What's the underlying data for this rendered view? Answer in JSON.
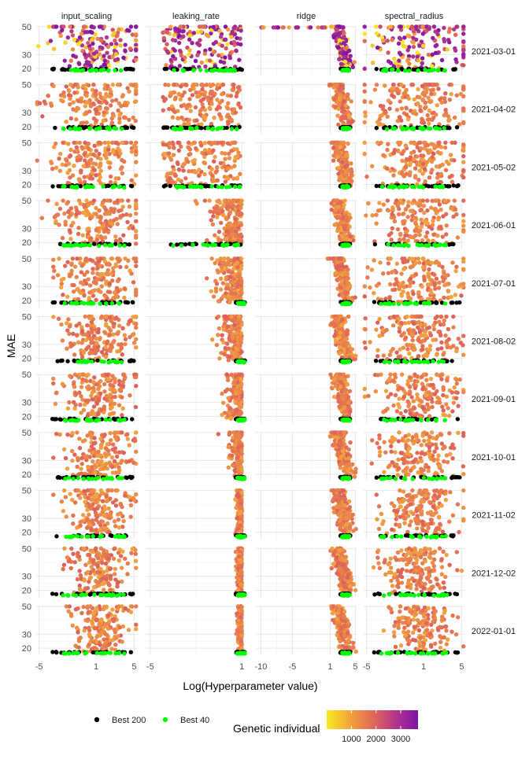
{
  "chart_data": {
    "type": "scatter",
    "facet_columns": [
      "input_scaling",
      "leaking_rate",
      "ridge",
      "spectral_radius"
    ],
    "facet_rows": [
      "2021-03-01",
      "2021-04-02",
      "2021-05-02",
      "2021-06-01",
      "2021-07-01",
      "2021-08-02",
      "2021-09-01",
      "2021-10-01",
      "2021-11-02",
      "2021-12-02",
      "2022-01-01"
    ],
    "xlabel": "Log(Hyperparameter value)",
    "ylabel": "MAE",
    "ylim": [
      15,
      50
    ],
    "y_ticks": [
      20,
      30,
      50
    ],
    "x_axes": {
      "input_scaling": {
        "range": [
          -5.3,
          5.3
        ],
        "ticks": [
          -5,
          1,
          5
        ]
      },
      "leaking_rate": {
        "range": [
          -5.3,
          1.3
        ],
        "ticks": [
          -5,
          1
        ]
      },
      "ridge": {
        "range": [
          -10.8,
          5.2
        ],
        "ticks": [
          -10,
          -5,
          1,
          5
        ]
      },
      "spectral_radius": {
        "range": [
          -5.3,
          5.3
        ],
        "ticks": [
          -5,
          1,
          5
        ]
      }
    },
    "color_scale": {
      "title": "Genetic individual",
      "min": 0,
      "max": 3700,
      "ticks": [
        1000,
        2000,
        3000
      ],
      "colors": [
        "#f8ec1f",
        "#f2a43d",
        "#e26a56",
        "#b3368a",
        "#7e12a8"
      ]
    },
    "legend": {
      "items": [
        {
          "name": "Best 200",
          "color": "#000000"
        },
        {
          "name": "Best 40",
          "color": "#00ff00"
        }
      ],
      "placement": "bottom"
    },
    "grid": true,
    "points_per_panel_estimate": 400
  }
}
